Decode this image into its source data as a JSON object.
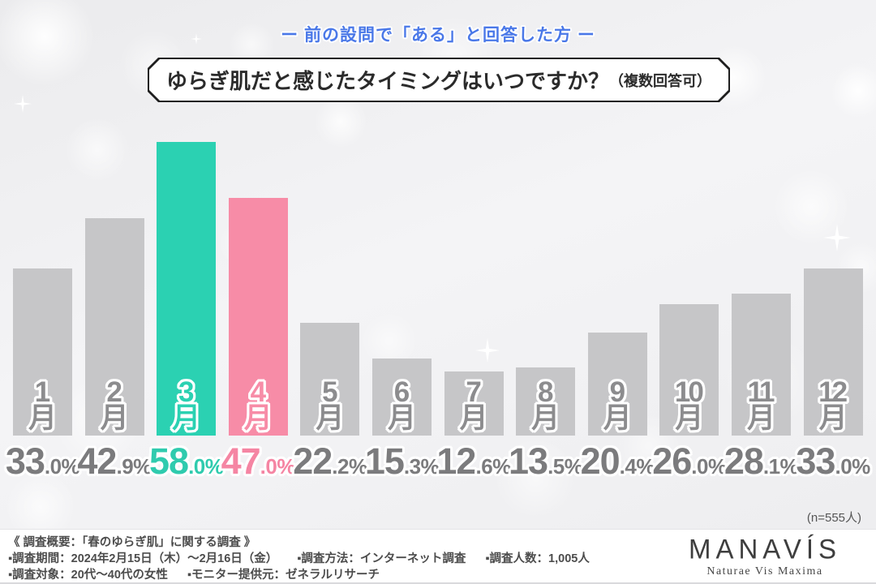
{
  "header": {
    "subtitle": "ー 前の設問で「ある」と回答した方 ー",
    "title_main": "ゆらぎ肌だと感じたタイミングはいつですか？",
    "title_note": "（複数回答可）"
  },
  "chart_data": {
    "type": "bar",
    "title": "ゆらぎ肌だと感じたタイミングはいつですか？（複数回答可）",
    "categories": [
      "1月",
      "2月",
      "3月",
      "4月",
      "5月",
      "6月",
      "7月",
      "8月",
      "9月",
      "10月",
      "11月",
      "12月"
    ],
    "values": [
      33.0,
      42.9,
      58.0,
      47.0,
      22.2,
      15.3,
      12.6,
      13.5,
      20.4,
      26.0,
      28.1,
      33.0
    ],
    "value_suffix": "%",
    "ylim": [
      0,
      60
    ],
    "grid": false,
    "legend": false,
    "bar_color_keys": [
      "gray",
      "gray",
      "teal",
      "pink",
      "gray",
      "gray",
      "gray",
      "gray",
      "gray",
      "gray",
      "gray",
      "gray"
    ],
    "highlighted_categories": [
      "3月",
      "4月"
    ],
    "category_suffix": "月"
  },
  "n_note": "(n=555人)",
  "footer": {
    "heading": "《 調査概要：「春のゆらぎ肌」に関する調査 》",
    "row2": [
      "▪調査期間：2024年2月15日（木）〜2月16日（金）",
      "▪調査方法：インターネット調査",
      "▪調査人数：1,005人"
    ],
    "row3": [
      "▪調査対象：20代〜40代の女性",
      "▪モニター提供元：ゼネラルリサーチ"
    ]
  },
  "logo": {
    "name": "MANAVÍS",
    "tagline": "Naturae Vis Maxima"
  },
  "colors": {
    "accent_blue": "#4a78e8",
    "gray_bar": "#c6c6c8",
    "gray_label": "#8c8c8e",
    "gray_value": "#7b7b7d",
    "teal_bar": "#2bd1b2",
    "teal_label": "#2bd1b2",
    "teal_value": "#2fcbae",
    "pink_bar": "#f78ca7",
    "pink_label": "#f78ca7",
    "pink_value": "#f585a3"
  }
}
